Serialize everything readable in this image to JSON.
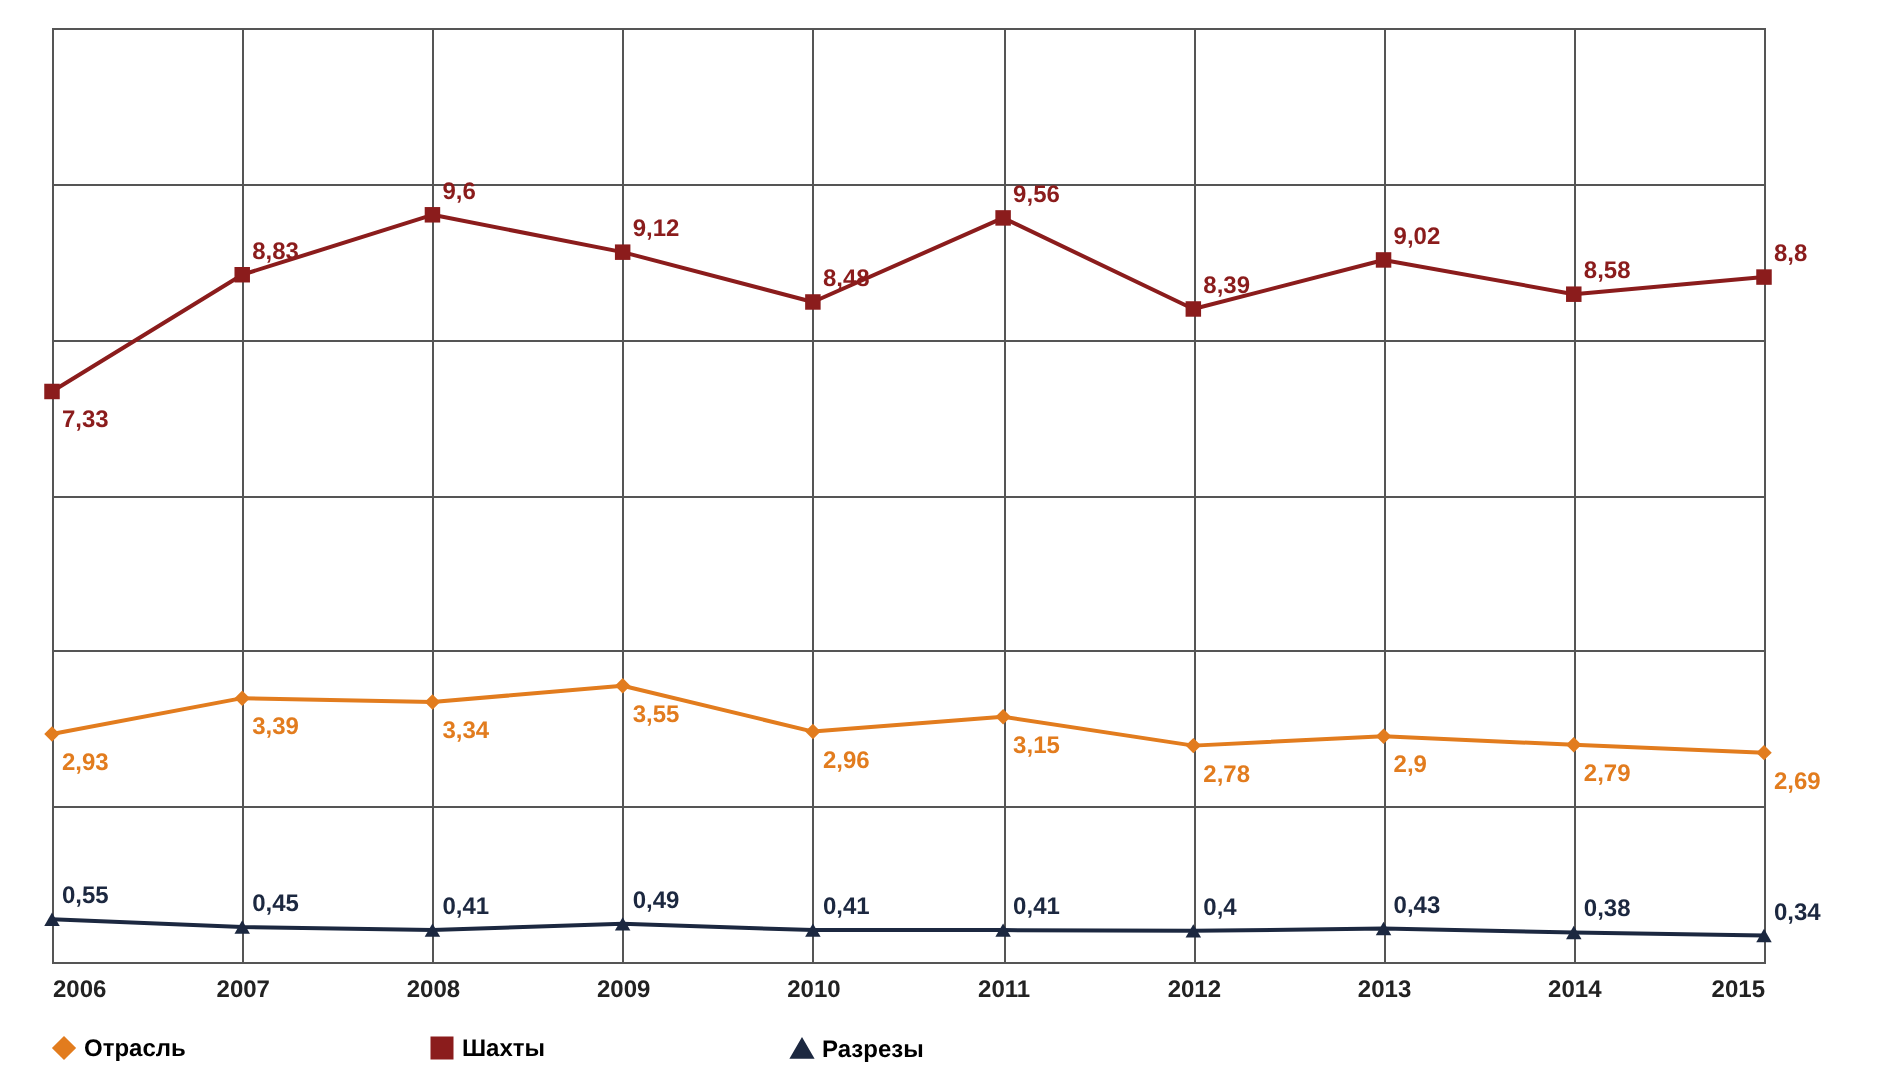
{
  "chart_data": {
    "type": "line",
    "categories": [
      "2006",
      "2007",
      "2008",
      "2009",
      "2010",
      "2011",
      "2012",
      "2013",
      "2014",
      "2015"
    ],
    "series": [
      {
        "name": "Отрасль",
        "color": "#e27c1e",
        "marker": "diamond",
        "values": [
          2.93,
          3.39,
          3.34,
          3.55,
          2.96,
          3.15,
          2.78,
          2.9,
          2.79,
          2.69
        ],
        "value_labels": [
          "2,93",
          "3,39",
          "3,34",
          "3,55",
          "2,96",
          "3,15",
          "2,78",
          "2,9",
          "2,79",
          "2,69"
        ]
      },
      {
        "name": "Шахты",
        "color": "#8b1c1c",
        "marker": "square",
        "values": [
          7.33,
          8.83,
          9.6,
          9.12,
          8.48,
          9.56,
          8.39,
          9.02,
          8.58,
          8.8
        ],
        "value_labels": [
          "7,33",
          "8,83",
          "9,6",
          "9,12",
          "8,48",
          "9,56",
          "8,39",
          "9,02",
          "8,58",
          "8,8"
        ]
      },
      {
        "name": "Разрезы",
        "color": "#1c2840",
        "marker": "triangle",
        "values": [
          0.55,
          0.45,
          0.41,
          0.49,
          0.41,
          0.41,
          0.4,
          0.43,
          0.38,
          0.34
        ],
        "value_labels": [
          "0,55",
          "0,45",
          "0,41",
          "0,49",
          "0,41",
          "0,41",
          "0,4",
          "0,43",
          "0,38",
          "0,34"
        ]
      }
    ],
    "ylim": [
      0,
      12
    ],
    "yticks": [
      {
        "value": 0,
        "label": null
      },
      {
        "value": 2,
        "label": null
      },
      {
        "value": 4,
        "label": null
      },
      {
        "value": 6,
        "label": null
      },
      {
        "value": 8,
        "label": null
      },
      {
        "value": 10,
        "label": null
      },
      {
        "value": 12,
        "label": null
      }
    ],
    "grid": true,
    "legend": "bottom",
    "tick_labels": "x",
    "line_style": "solid"
  }
}
